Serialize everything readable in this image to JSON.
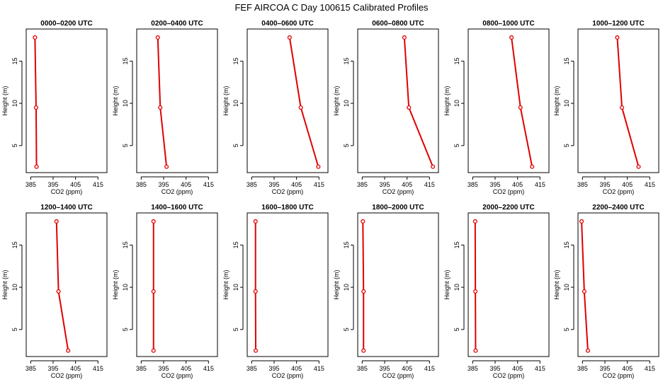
{
  "title": "FEF AIRCOA C  Day 100615  Calibrated Profiles",
  "chart_data": {
    "type": "line",
    "xlabel": "CO2 (ppm)",
    "ylabel": "Height (m)",
    "xlim": [
      383,
      419
    ],
    "ylim": [
      1.8,
      18.8
    ],
    "xticks": [
      385,
      395,
      405,
      415
    ],
    "yticks": [
      5,
      10,
      15
    ],
    "heights": [
      2.5,
      9.5,
      17.8
    ],
    "panels": [
      {
        "title": "0000–0200 UTC",
        "co2": [
          387.6,
          387.4,
          386.9
        ]
      },
      {
        "title": "0200–0400 UTC",
        "co2": [
          396.3,
          393.5,
          392.4
        ]
      },
      {
        "title": "0400–0600 UTC",
        "co2": [
          414.7,
          406.9,
          401.9
        ]
      },
      {
        "title": "0600–0800 UTC",
        "co2": [
          416.5,
          405.8,
          403.8
        ]
      },
      {
        "title": "0800–1000 UTC",
        "co2": [
          411.5,
          406.3,
          402.3
        ]
      },
      {
        "title": "1000–1200 UTC",
        "co2": [
          410.0,
          402.6,
          400.5
        ]
      },
      {
        "title": "1200–1400 UTC",
        "co2": [
          401.7,
          397.4,
          396.5
        ]
      },
      {
        "title": "1400–1600 UTC",
        "co2": [
          390.5,
          390.5,
          390.5
        ]
      },
      {
        "title": "1600–1800 UTC",
        "co2": [
          386.8,
          386.7,
          386.7
        ]
      },
      {
        "title": "1800–2000 UTC",
        "co2": [
          385.6,
          385.6,
          385.3
        ]
      },
      {
        "title": "2000–2200 UTC",
        "co2": [
          386.3,
          386.2,
          386.1
        ]
      },
      {
        "title": "2200–2400 UTC",
        "co2": [
          387.4,
          385.8,
          384.6
        ]
      }
    ]
  }
}
